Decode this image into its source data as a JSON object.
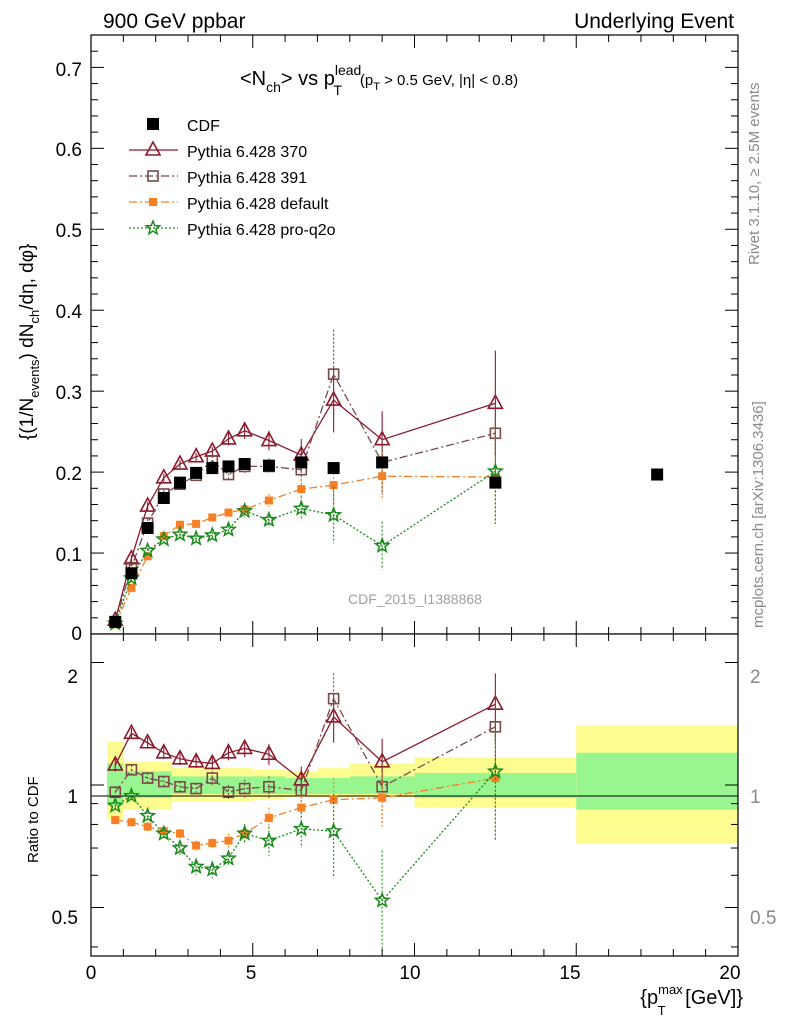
{
  "header": {
    "left": "900 GeV ppbar",
    "right": "Underlying Event"
  },
  "side_labels": {
    "rivet": "Rivet 3.1.10, ≥ 2.5M events",
    "mcplots": "mcplots.cern.ch [arXiv:1306.3436]"
  },
  "chart_data": [
    {
      "type": "scatter",
      "title_main": "<N",
      "title_sub1": "ch",
      "title_mid": "> vs p",
      "title_sup": "lead",
      "title_sub2": "T",
      "title_cut": "(p",
      "title_cut_sub": "T",
      "title_cut_rest": " > 0.5 GeV, |η| < 0.8)",
      "ylabel": "{(1/N_events) dN_ch/dη, dφ}",
      "ylim": [
        0,
        0.74
      ],
      "yticks": [
        "0",
        "0.1",
        "0.2",
        "0.3",
        "0.4",
        "0.5",
        "0.6",
        "0.7"
      ],
      "watermark": "CDF_2015_I1388868",
      "series": [
        {
          "name": "CDF",
          "color": "#000000",
          "marker": "filled-square",
          "x": [
            0.75,
            1.25,
            1.75,
            2.25,
            2.75,
            3.25,
            3.75,
            4.25,
            4.75,
            5.5,
            6.5,
            7.5,
            9.0,
            12.5,
            17.5
          ],
          "y": [
            0.015,
            0.075,
            0.131,
            0.168,
            0.187,
            0.199,
            0.205,
            0.207,
            0.21,
            0.208,
            0.212,
            0.205,
            0.212,
            0.187,
            0.197
          ]
        },
        {
          "name": "Pythia 6.428 370",
          "color": "#8b1a2b",
          "marker": "open-triangle",
          "line": "solid",
          "x": [
            0.75,
            1.25,
            1.75,
            2.25,
            2.75,
            3.25,
            3.75,
            4.25,
            4.75,
            5.5,
            6.5,
            7.5,
            9.0,
            12.5
          ],
          "y": [
            0.017,
            0.093,
            0.158,
            0.193,
            0.21,
            0.219,
            0.226,
            0.241,
            0.251,
            0.239,
            0.221,
            0.289,
            0.24,
            0.285
          ],
          "err": [
            0.002,
            0.005,
            0.005,
            0.005,
            0.005,
            0.005,
            0.005,
            0.008,
            0.01,
            0.012,
            0.02,
            0.04,
            0.035,
            0.065
          ]
        },
        {
          "name": "Pythia 6.428 391",
          "color": "#7a4a4a",
          "marker": "open-square",
          "line": "dashdot",
          "x": [
            0.75,
            1.25,
            1.75,
            2.25,
            2.75,
            3.25,
            3.75,
            4.25,
            4.75,
            5.5,
            6.5,
            7.5,
            9.0,
            12.5
          ],
          "y": [
            0.015,
            0.082,
            0.137,
            0.173,
            0.185,
            0.196,
            0.214,
            0.197,
            0.207,
            0.207,
            0.203,
            0.321,
            0.212,
            0.248
          ],
          "err": [
            0.002,
            0.004,
            0.005,
            0.005,
            0.005,
            0.005,
            0.006,
            0.006,
            0.008,
            0.01,
            0.018,
            0.055,
            0.04,
            0.06
          ]
        },
        {
          "name": "Pythia 6.428 default",
          "color": "#f58025",
          "marker": "filled-square-small",
          "line": "dashdot",
          "x": [
            0.75,
            1.25,
            1.75,
            2.25,
            2.75,
            3.25,
            3.75,
            4.25,
            4.75,
            5.5,
            6.5,
            7.5,
            9.0,
            12.5
          ],
          "y": [
            0.012,
            0.057,
            0.096,
            0.121,
            0.135,
            0.136,
            0.144,
            0.15,
            0.154,
            0.165,
            0.179,
            0.184,
            0.195,
            0.194
          ],
          "err": [
            0.001,
            0.003,
            0.003,
            0.003,
            0.003,
            0.004,
            0.004,
            0.004,
            0.006,
            0.008,
            0.012,
            0.025,
            0.03,
            0.058
          ]
        },
        {
          "name": "Pythia 6.428 pro-q2o",
          "color": "#1a8a1a",
          "marker": "open-star",
          "line": "dotted",
          "x": [
            0.75,
            1.25,
            1.75,
            2.25,
            2.75,
            3.25,
            3.75,
            4.25,
            4.75,
            5.5,
            6.5,
            7.5,
            9.0,
            12.5
          ],
          "y": [
            0.013,
            0.069,
            0.103,
            0.117,
            0.123,
            0.118,
            0.122,
            0.129,
            0.152,
            0.141,
            0.155,
            0.147,
            0.109,
            0.201
          ],
          "err": [
            0.001,
            0.003,
            0.003,
            0.003,
            0.004,
            0.004,
            0.004,
            0.005,
            0.008,
            0.01,
            0.015,
            0.035,
            0.03,
            0.065
          ]
        }
      ]
    },
    {
      "type": "scatter",
      "ylabel": "Ratio to CDF",
      "yscale": "log",
      "ylim": [
        0.38,
        2.35
      ],
      "yticks": [
        "0.5",
        "1",
        "2"
      ],
      "xlabel_main": "{p",
      "xlabel_sup": "max",
      "xlabel_sub": "T",
      "xlabel_rest": " [GeV]}",
      "xlim": [
        0,
        20
      ],
      "xticks": [
        "0",
        "5",
        "10",
        "15",
        "20"
      ],
      "bands": [
        {
          "x": [
            0.5,
            1.0
          ],
          "inner": [
            0.89,
            1.13
          ],
          "outer": [
            0.82,
            1.28
          ]
        },
        {
          "x": [
            1.0,
            2.5
          ],
          "inner": [
            0.93,
            1.08
          ],
          "outer": [
            0.87,
            1.14
          ]
        },
        {
          "x": [
            2.5,
            5.0
          ],
          "inner": [
            0.95,
            1.05
          ],
          "outer": [
            0.91,
            1.1
          ]
        },
        {
          "x": [
            5.0,
            6.0
          ],
          "inner": [
            0.95,
            1.05
          ],
          "outer": [
            0.92,
            1.09
          ]
        },
        {
          "x": [
            6.0,
            7.0
          ],
          "inner": [
            0.95,
            1.04
          ],
          "outer": [
            0.93,
            1.08
          ]
        },
        {
          "x": [
            7.0,
            8.0
          ],
          "inner": [
            0.95,
            1.04
          ],
          "outer": [
            0.93,
            1.1
          ]
        },
        {
          "x": [
            8.0,
            10.0
          ],
          "inner": [
            0.95,
            1.05
          ],
          "outer": [
            0.93,
            1.13
          ]
        },
        {
          "x": [
            10.0,
            15.0
          ],
          "inner": [
            0.93,
            1.07
          ],
          "outer": [
            0.88,
            1.17
          ]
        },
        {
          "x": [
            15.0,
            20.0
          ],
          "inner": [
            0.87,
            1.2
          ],
          "outer": [
            0.72,
            1.4
          ]
        }
      ],
      "series": [
        {
          "name": "Pythia 6.428 370",
          "color": "#8b1a2b",
          "marker": "open-triangle",
          "line": "solid",
          "x": [
            0.75,
            1.25,
            1.75,
            2.25,
            2.75,
            3.25,
            3.75,
            4.25,
            4.75,
            5.5,
            6.5,
            7.5,
            9.0,
            12.5
          ],
          "y": [
            1.12,
            1.34,
            1.27,
            1.2,
            1.16,
            1.14,
            1.13,
            1.2,
            1.23,
            1.19,
            1.03,
            1.47,
            1.14,
            1.58
          ],
          "err": [
            0.04,
            0.04,
            0.04,
            0.04,
            0.04,
            0.04,
            0.04,
            0.05,
            0.06,
            0.07,
            0.08,
            0.2,
            0.16,
            0.3
          ]
        },
        {
          "name": "Pythia 6.428 391",
          "color": "#7a4a4a",
          "marker": "open-square",
          "line": "dashdot",
          "x": [
            0.75,
            1.25,
            1.75,
            2.25,
            2.75,
            3.25,
            3.75,
            4.25,
            4.75,
            5.5,
            6.5,
            7.5,
            9.0,
            12.5
          ],
          "y": [
            0.96,
            1.09,
            1.04,
            1.02,
            0.99,
            0.98,
            1.04,
            0.96,
            0.98,
            0.99,
            0.97,
            1.63,
            0.99,
            1.39
          ],
          "err": [
            0.03,
            0.03,
            0.03,
            0.03,
            0.03,
            0.03,
            0.04,
            0.04,
            0.05,
            0.06,
            0.08,
            0.25,
            0.18,
            0.35
          ]
        },
        {
          "name": "Pythia 6.428 default",
          "color": "#f58025",
          "marker": "filled-square-small",
          "line": "dashdot",
          "x": [
            0.75,
            1.25,
            1.75,
            2.25,
            2.75,
            3.25,
            3.75,
            4.25,
            4.75,
            5.5,
            6.5,
            7.5,
            9.0,
            12.5
          ],
          "y": [
            0.82,
            0.81,
            0.79,
            0.77,
            0.76,
            0.71,
            0.72,
            0.73,
            0.76,
            0.83,
            0.88,
            0.92,
            0.93,
            1.04
          ],
          "err": [
            0.02,
            0.02,
            0.02,
            0.02,
            0.02,
            0.02,
            0.02,
            0.03,
            0.04,
            0.05,
            0.06,
            0.12,
            0.14,
            0.3
          ]
        },
        {
          "name": "Pythia 6.428 pro-q2o",
          "color": "#1a8a1a",
          "marker": "open-star",
          "line": "dotted",
          "x": [
            0.75,
            1.25,
            1.75,
            2.25,
            2.75,
            3.25,
            3.75,
            4.25,
            4.75,
            5.5,
            6.5,
            7.5,
            9.0,
            12.5
          ],
          "y": [
            0.89,
            0.94,
            0.84,
            0.76,
            0.7,
            0.63,
            0.62,
            0.66,
            0.76,
            0.73,
            0.78,
            0.77,
            0.52,
            1.08
          ],
          "err": [
            0.02,
            0.02,
            0.02,
            0.02,
            0.03,
            0.03,
            0.03,
            0.03,
            0.04,
            0.06,
            0.08,
            0.18,
            0.17,
            0.35
          ]
        }
      ]
    }
  ]
}
